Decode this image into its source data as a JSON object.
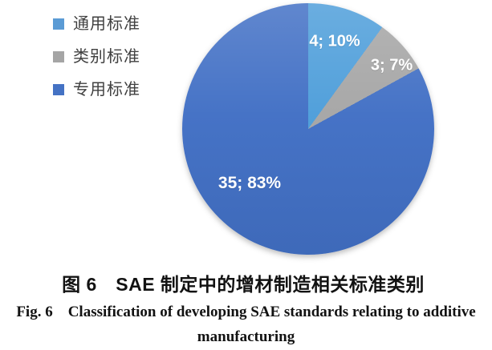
{
  "chart_data": {
    "type": "pie",
    "start_angle_deg": 0,
    "direction": "clockwise",
    "legend_position": "top-left",
    "total": 42,
    "slices": [
      {
        "name": "通用标准",
        "value": 4,
        "pct": 10,
        "label": "4; 10%",
        "fill": "#4E9EDA",
        "legend_color": "#5B9BD5"
      },
      {
        "name": "类别标准",
        "value": 3,
        "pct": 7,
        "label": "3; 7%",
        "fill": "#A6A6A6",
        "legend_color": "#A5A5A5"
      },
      {
        "name": "专用标准",
        "value": 35,
        "pct": 83,
        "label": "35; 83%",
        "fill": "#4270C5",
        "legend_color": "#4472C4"
      }
    ],
    "title_cn": "图 6　SAE 制定中的增材制造相关标准类别",
    "title_en": "Fig. 6　Classification of developing SAE standards relating to additive manufacturing"
  },
  "caption": {
    "cn": "图 6　SAE 制定中的增材制造相关标准类别",
    "en_line1": "Fig. 6  Classification of developing SAE standards relating to additive",
    "en_line2": "manufacturing"
  }
}
